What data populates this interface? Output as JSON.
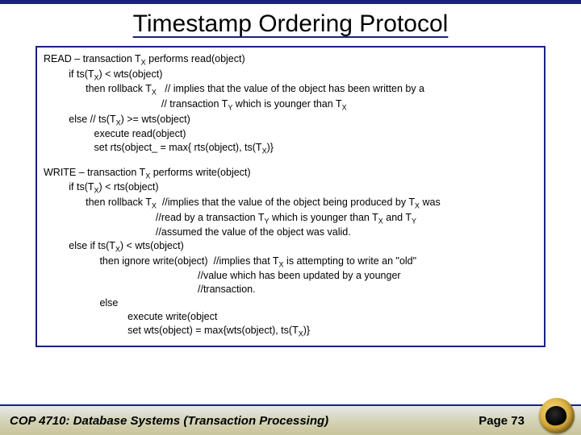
{
  "title": "Timestamp Ordering Protocol",
  "colors": {
    "border": "#1a237e",
    "background": "#ffffff",
    "text": "#000000",
    "footer_gradient_top": "#e8e8e8",
    "footer_gradient_bottom": "#c8c49a",
    "logo_gold": "#d4a838"
  },
  "read_block": {
    "l1a": "READ – transaction T",
    "l1b": " performs read(object)",
    "l2a": "         if ts(T",
    "l2b": ") < wts(object)",
    "l3a": "               then rollback T",
    "l3b": "   // implies that the value of the object has been written by a",
    "l4a": "                                          // transaction T",
    "l4b": " which is younger than T",
    "l5a": "         else // ts(T",
    "l5b": ") >= wts(object)",
    "l6": "                  execute read(object)",
    "l7a": "                  set rts(object_ = max{ rts(object), ts(T",
    "l7b": ")}"
  },
  "write_block": {
    "l1a": "WRITE – transaction T",
    "l1b": " performs write(object)",
    "l2a": "         if ts(T",
    "l2b": ") < rts(object)",
    "l3a": "               then rollback T",
    "l3b": "  //implies that the value of the object being produced by T",
    "l3c": " was",
    "l4a": "                                        //read by a transaction T",
    "l4b": " which is younger than T",
    "l4c": " and T",
    "l5": "                                        //assumed the value of the object was valid.",
    "l6a": "         else if ts(T",
    "l6b": ") < wts(object)",
    "l7a": "                    then ignore write(object)  //implies that T",
    "l7b": " is attempting to write an \"old\"",
    "l8": "                                                       //value which has been updated by a younger",
    "l9": "                                                       //transaction.",
    "l10": "                    else",
    "l11": "                              execute write(object",
    "l12a": "                              set wts(object) = max{wts(object), ts(T",
    "l12b": ")}"
  },
  "subs": {
    "X": "X",
    "Y": "Y"
  },
  "footer": {
    "course": "COP 4710: Database Systems  (Transaction Processing)",
    "page": "Page 73"
  }
}
